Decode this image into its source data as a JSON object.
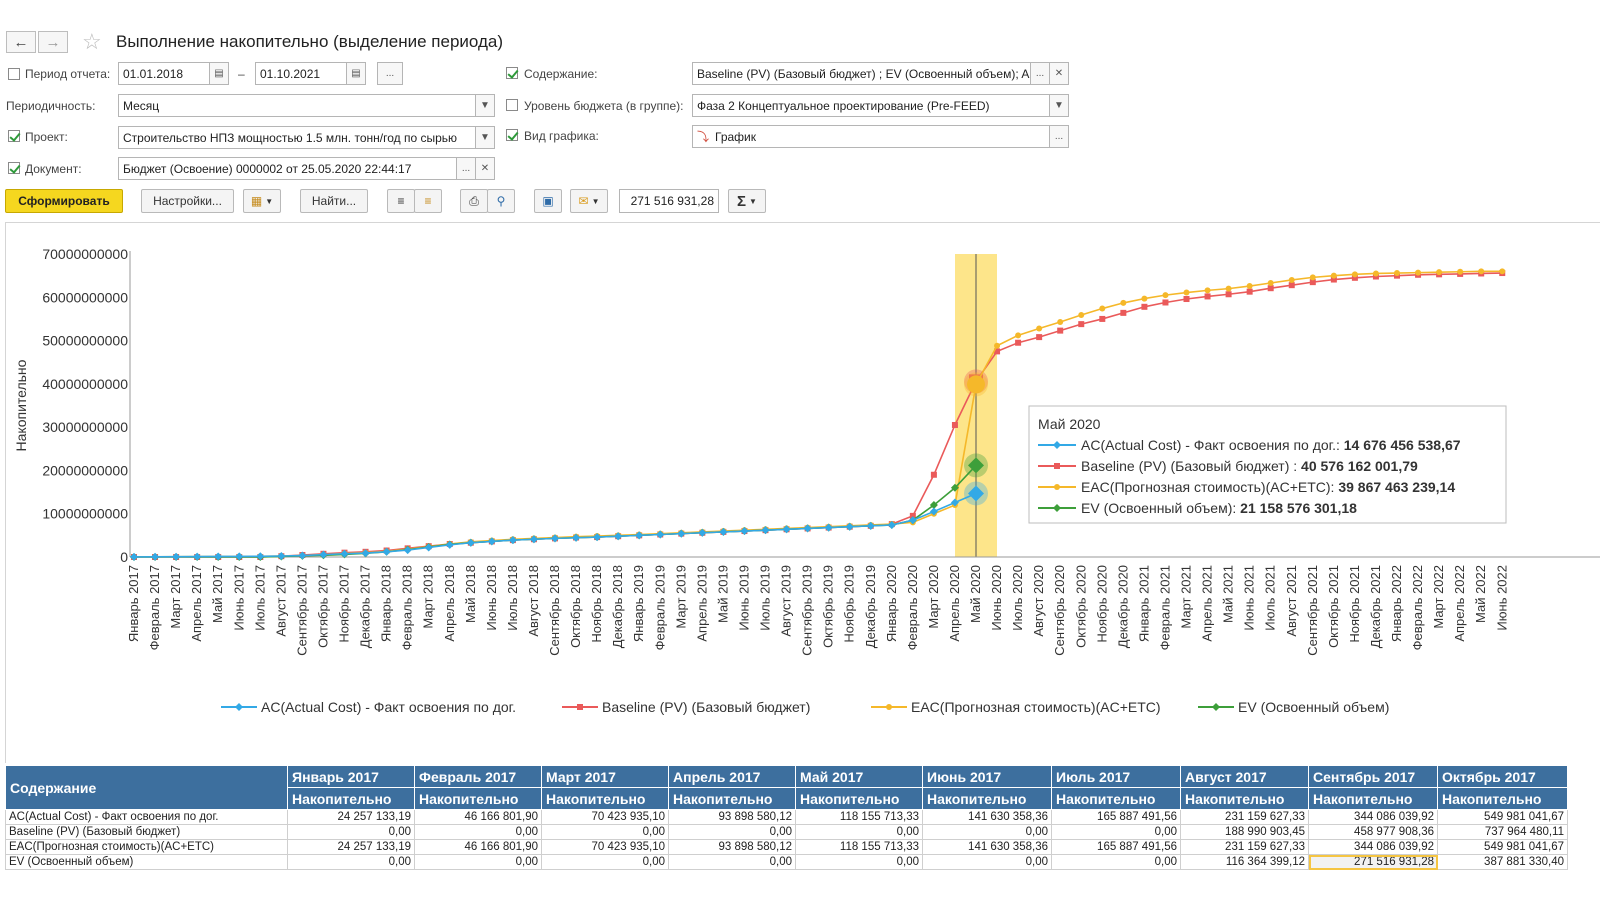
{
  "window": {
    "title": "Выполнение накопительно (выделение периода)"
  },
  "filters": {
    "period_label": "Период отчета:",
    "period_from": "01.01.2018",
    "period_to": "01.10.2021",
    "period_dash": "–",
    "more_label": "...",
    "periodicity_label": "Периодичность:",
    "periodicity_value": "Месяц",
    "project_label": "Проект:",
    "project_value": "Строительство НПЗ мощностью 1.5 млн. тонн/год по сырью",
    "document_label": "Документ:",
    "document_value": "Бюджет (Освоение) 0000002 от 25.05.2020 22:44:17",
    "content_label": "Содержание:",
    "content_value": "Baseline (PV) (Базовый бюджет) ; EV (Освоенный объем); AC",
    "budget_level_label": "Уровень бюджета (в группе):",
    "budget_level_value": "Фаза 2 Концептуальное проектирование (Pre-FEED)",
    "chart_type_label": "Вид графика:",
    "chart_type_value": "График"
  },
  "toolbar": {
    "generate_label": "Сформировать",
    "settings_label": "Настройки...",
    "find_label": "Найти...",
    "sum_value": "271 516 931,28",
    "sigma_label": "Σ"
  },
  "chart_data": {
    "type": "line",
    "ylabel": "Накопительно",
    "ylim": [
      0,
      70000000000
    ],
    "yticks": [
      "70000000000",
      "60000000000",
      "50000000000",
      "40000000000",
      "30000000000",
      "20000000000",
      "10000000000",
      "0"
    ],
    "x_labels": [
      "Январь 2017",
      "Февраль 2017",
      "Март 2017",
      "Апрель 2017",
      "Май 2017",
      "Июнь 2017",
      "Июль 2017",
      "Август 2017",
      "Сентябрь 2017",
      "Октябрь 2017",
      "Ноябрь 2017",
      "Декабрь 2017",
      "Январь 2018",
      "Февраль 2018",
      "Март 2018",
      "Апрель 2018",
      "Май 2018",
      "Июнь 2018",
      "Июль 2018",
      "Август 2018",
      "Сентябрь 2018",
      "Октябрь 2018",
      "Ноябрь 2018",
      "Декабрь 2018",
      "Январь 2019",
      "Февраль 2019",
      "Март 2019",
      "Апрель 2019",
      "Май 2019",
      "Июнь 2019",
      "Июль 2019",
      "Август 2019",
      "Сентябрь 2019",
      "Октябрь 2019",
      "Ноябрь 2019",
      "Декабрь 2019",
      "Январь 2020",
      "Февраль 2020",
      "Март 2020",
      "Апрель 2020",
      "Май 2020",
      "Июнь 2020",
      "Июль 2020",
      "Август 2020",
      "Сентябрь 2020",
      "Октябрь 2020",
      "Ноябрь 2020",
      "Декабрь 2020",
      "Январь 2021",
      "Февраль 2021",
      "Март 2021",
      "Апрель 2021",
      "Май 2021",
      "Июнь 2021",
      "Июль 2021",
      "Август 2021",
      "Сентябрь 2021",
      "Октябрь 2021",
      "Ноябрь 2021",
      "Декабрь 2021",
      "Январь 2022",
      "Февраль 2022",
      "Март 2022",
      "Апрель 2022",
      "Май 2022",
      "Июнь 2022"
    ],
    "highlight_index": 40,
    "series": [
      {
        "name": "AC(Actual Cost) - Факт освоения по дог.",
        "color": "#33a9e6",
        "marker": "diamond",
        "values": [
          0.02,
          0.05,
          0.07,
          0.09,
          0.12,
          0.14,
          0.17,
          0.23,
          0.34,
          0.55,
          0.75,
          0.9,
          1.2,
          1.6,
          2.2,
          2.8,
          3.3,
          3.6,
          3.9,
          4.1,
          4.3,
          4.45,
          4.6,
          4.8,
          5.0,
          5.2,
          5.4,
          5.6,
          5.8,
          6.0,
          6.2,
          6.4,
          6.6,
          6.8,
          7.0,
          7.2,
          7.4,
          8.5,
          10.5,
          12.6,
          14.676456538
        ]
      },
      {
        "name": "Baseline (PV) (Базовый бюджет)",
        "color": "#ea5a5a",
        "marker": "square",
        "values": [
          0,
          0,
          0,
          0,
          0,
          0,
          0,
          0.19,
          0.46,
          0.74,
          1.0,
          1.2,
          1.5,
          2.0,
          2.5,
          3.0,
          3.3,
          3.6,
          3.9,
          4.1,
          4.3,
          4.5,
          4.6,
          4.8,
          5.0,
          5.2,
          5.4,
          5.6,
          5.8,
          6.0,
          6.2,
          6.4,
          6.6,
          6.8,
          7.0,
          7.2,
          7.6,
          9.5,
          19.0,
          30.5,
          40.576162001,
          47.5,
          49.5,
          50.8,
          52.3,
          53.8,
          55.0,
          56.4,
          57.8,
          58.8,
          59.6,
          60.2,
          60.7,
          61.3,
          62.1,
          62.8,
          63.5,
          64.1,
          64.5,
          64.8,
          65.0,
          65.2,
          65.3,
          65.4,
          65.5,
          65.6
        ]
      },
      {
        "name": "EAC(Прогнозная стоимость)(AC+ETC)",
        "color": "#f5b82a",
        "marker": "circle",
        "values": [
          0.02,
          0.05,
          0.07,
          0.09,
          0.12,
          0.14,
          0.17,
          0.23,
          0.34,
          0.55,
          0.8,
          1.0,
          1.3,
          1.8,
          2.4,
          3.0,
          3.5,
          3.8,
          4.1,
          4.3,
          4.5,
          4.7,
          4.85,
          5.0,
          5.2,
          5.4,
          5.6,
          5.8,
          6.0,
          6.2,
          6.4,
          6.6,
          6.8,
          7.0,
          7.2,
          7.4,
          7.6,
          8.0,
          10.0,
          12.0,
          39.867463239,
          48.8,
          51.2,
          52.8,
          54.3,
          55.9,
          57.4,
          58.7,
          59.7,
          60.5,
          61.1,
          61.6,
          62.0,
          62.6,
          63.3,
          64.0,
          64.6,
          65.0,
          65.3,
          65.5,
          65.6,
          65.7,
          65.8,
          65.9,
          66.0,
          66.0
        ]
      },
      {
        "name": "EV (Освоенный объем)",
        "color": "#3d9f3a",
        "marker": "diamond",
        "values": [
          0,
          0,
          0,
          0,
          0,
          0,
          0,
          0.116,
          0.27,
          0.39,
          0.6,
          0.85,
          1.2,
          1.7,
          2.3,
          2.9,
          3.3,
          3.6,
          3.9,
          4.1,
          4.3,
          4.45,
          4.6,
          4.8,
          5.0,
          5.2,
          5.4,
          5.6,
          5.8,
          6.0,
          6.2,
          6.4,
          6.6,
          6.8,
          7.0,
          7.2,
          7.4,
          8.5,
          12.0,
          16.0,
          21.158576301
        ]
      }
    ],
    "legend_placement": "bottom",
    "tooltip": {
      "title": "Май 2020",
      "rows": [
        {
          "label": "AC(Actual Cost) - Факт освоения по дог.:",
          "value": "14 676 456 538,67",
          "color": "#33a9e6",
          "marker": "diamond"
        },
        {
          "label": "Baseline (PV) (Базовый бюджет) :",
          "value": "40 576 162 001,79",
          "color": "#ea5a5a",
          "marker": "square"
        },
        {
          "label": "EAC(Прогнозная стоимость)(AC+ETC):",
          "value": "39 867 463 239,14",
          "color": "#f5b82a",
          "marker": "circle"
        },
        {
          "label": "EV (Освоенный объем):",
          "value": "21 158 576 301,18",
          "color": "#3d9f3a",
          "marker": "diamond"
        }
      ]
    }
  },
  "table": {
    "header_label": "Содержание",
    "sub_label": "Накопительно",
    "months": [
      "Январь 2017",
      "Февраль 2017",
      "Март 2017",
      "Апрель 2017",
      "Май 2017",
      "Июнь 2017",
      "Июль 2017",
      "Август 2017",
      "Сентябрь 2017",
      "Октябрь 2017"
    ],
    "rows": [
      {
        "name": "AC(Actual Cost) - Факт освоения по дог.",
        "values": [
          "24 257 133,19",
          "46 166 801,90",
          "70 423 935,10",
          "93 898 580,12",
          "118 155 713,33",
          "141 630 358,36",
          "165 887 491,56",
          "231 159 627,33",
          "344 086 039,92",
          "549 981 041,67"
        ]
      },
      {
        "name": "Baseline (PV) (Базовый бюджет)",
        "values": [
          "0,00",
          "0,00",
          "0,00",
          "0,00",
          "0,00",
          "0,00",
          "0,00",
          "188 990 903,45",
          "458 977 908,36",
          "737 964 480,11"
        ]
      },
      {
        "name": "EAC(Прогнозная стоимость)(AC+ETC)",
        "values": [
          "24 257 133,19",
          "46 166 801,90",
          "70 423 935,10",
          "93 898 580,12",
          "118 155 713,33",
          "141 630 358,36",
          "165 887 491,56",
          "231 159 627,33",
          "344 086 039,92",
          "549 981 041,67"
        ]
      },
      {
        "name": "EV (Освоенный объем)",
        "values": [
          "0,00",
          "0,00",
          "0,00",
          "0,00",
          "0,00",
          "0,00",
          "0,00",
          "116 364 399,12",
          "271 516 931,28",
          "387 881 330,40"
        ]
      }
    ]
  }
}
